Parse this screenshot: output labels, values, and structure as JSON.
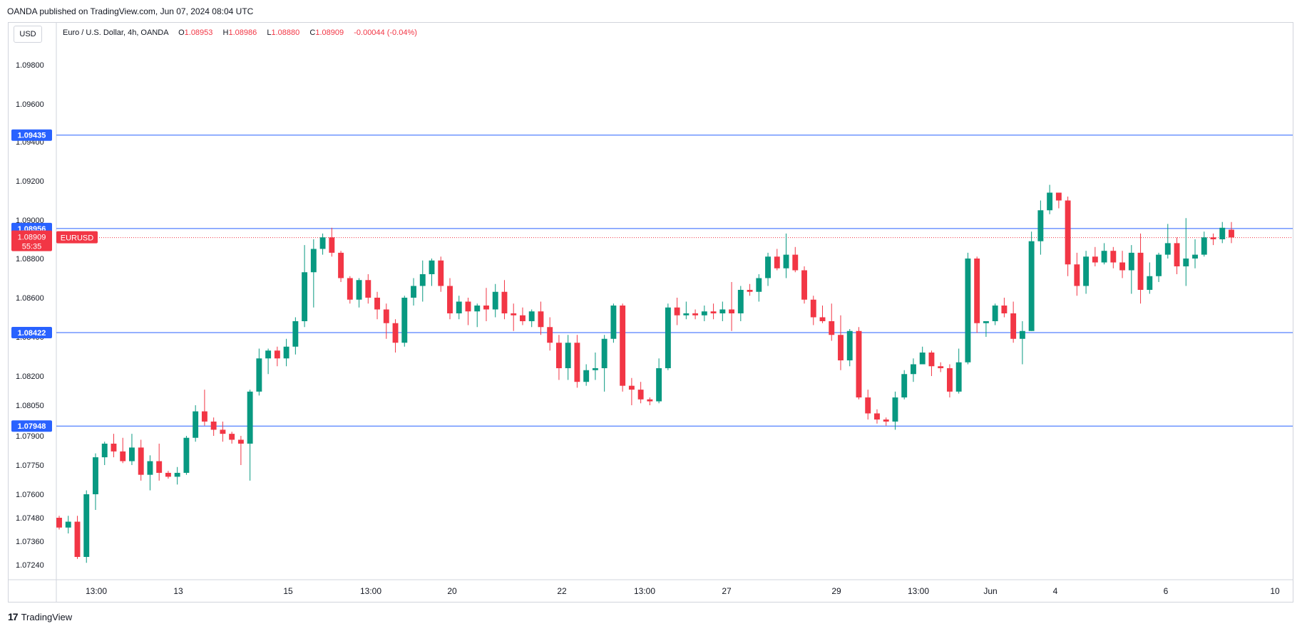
{
  "header": {
    "attribution": "OANDA published on TradingView.com, Jun 07, 2024 08:04 UTC"
  },
  "toolbar": {
    "currency_button": "USD"
  },
  "legend": {
    "symbol_desc": "Euro / U.S. Dollar, 4h, OANDA",
    "o_label": "O",
    "o_value": "1.08953",
    "h_label": "H",
    "h_value": "1.08986",
    "l_label": "L",
    "l_value": "1.08880",
    "c_label": "C",
    "c_value": "1.08909",
    "change": "-0.00044 (-0.04%)"
  },
  "footer": {
    "brand": "TradingView",
    "mark": "17"
  },
  "colors": {
    "up": "#089981",
    "down": "#f23645",
    "hline": "#2962ff",
    "grid": "#d1d4dc"
  },
  "chart_data": {
    "type": "candlestick",
    "symbol": "EURUSD",
    "timeframe": "4h",
    "y_ticks": [
      "1.07240",
      "1.07360",
      "1.07480",
      "1.07600",
      "1.07750",
      "1.07900",
      "1.08050",
      "1.08200",
      "1.08400",
      "1.08600",
      "1.08800",
      "1.09000",
      "1.09200",
      "1.09400",
      "1.09600",
      "1.09800"
    ],
    "x_ticks": [
      "13:00",
      "13",
      "15",
      "13:00",
      "20",
      "22",
      "13:00",
      "27",
      "29",
      "13:00",
      "Jun",
      "4",
      "6",
      "10"
    ],
    "horizontal_lines": [
      {
        "label": "1.09435",
        "value": 1.09435
      },
      {
        "label": "1.08956",
        "value": 1.08956
      },
      {
        "label": "1.08422",
        "value": 1.08422
      },
      {
        "label": "1.07948",
        "value": 1.07948
      }
    ],
    "current_price": {
      "label": "1.08909",
      "value": 1.08909,
      "countdown": "55:35",
      "symbol_tag": "EURUSD"
    },
    "candles": [
      [
        1.0748,
        1.0749,
        1.0742,
        1.0743
      ],
      [
        1.0743,
        1.0749,
        1.074,
        1.0746
      ],
      [
        1.0746,
        1.0749,
        1.0727,
        1.0728
      ],
      [
        1.0728,
        1.0762,
        1.0725,
        1.076
      ],
      [
        1.076,
        1.0781,
        1.0752,
        1.0779
      ],
      [
        1.0779,
        1.0787,
        1.0775,
        1.0786
      ],
      [
        1.0786,
        1.0791,
        1.0779,
        1.0782
      ],
      [
        1.0782,
        1.0789,
        1.0776,
        1.0777
      ],
      [
        1.0777,
        1.0791,
        1.0775,
        1.0784
      ],
      [
        1.0784,
        1.0788,
        1.0767,
        1.077
      ],
      [
        1.077,
        1.078,
        1.0762,
        1.0777
      ],
      [
        1.0777,
        1.0786,
        1.0767,
        1.0771
      ],
      [
        1.0771,
        1.0772,
        1.0768,
        1.0769
      ],
      [
        1.0769,
        1.0774,
        1.0765,
        1.0771
      ],
      [
        1.0771,
        1.079,
        1.077,
        1.0789
      ],
      [
        1.0789,
        1.0805,
        1.0787,
        1.0802
      ],
      [
        1.0802,
        1.0813,
        1.0795,
        1.0797
      ],
      [
        1.0797,
        1.0799,
        1.079,
        1.0793
      ],
      [
        1.0793,
        1.0797,
        1.0787,
        1.0791
      ],
      [
        1.0791,
        1.0792,
        1.0786,
        1.0788
      ],
      [
        1.0788,
        1.079,
        1.0775,
        1.0786
      ],
      [
        1.0786,
        1.0813,
        1.0767,
        1.0812
      ],
      [
        1.0812,
        1.0834,
        1.081,
        1.0829
      ],
      [
        1.0829,
        1.0834,
        1.0821,
        1.0833
      ],
      [
        1.0833,
        1.0835,
        1.0825,
        1.0829
      ],
      [
        1.0829,
        1.0839,
        1.0825,
        1.0835
      ],
      [
        1.0835,
        1.085,
        1.0831,
        1.0848
      ],
      [
        1.0848,
        1.0887,
        1.0845,
        1.0873
      ],
      [
        1.0873,
        1.089,
        1.0855,
        1.0885
      ],
      [
        1.0885,
        1.0893,
        1.0882,
        1.0891
      ],
      [
        1.0891,
        1.0896,
        1.0881,
        1.0883
      ],
      [
        1.0883,
        1.0884,
        1.0868,
        1.087
      ],
      [
        1.087,
        1.0871,
        1.0857,
        1.0859
      ],
      [
        1.0859,
        1.087,
        1.0855,
        1.0869
      ],
      [
        1.0869,
        1.0872,
        1.0857,
        1.086
      ],
      [
        1.086,
        1.0863,
        1.0849,
        1.0854
      ],
      [
        1.0854,
        1.0857,
        1.0839,
        1.0847
      ],
      [
        1.0847,
        1.0849,
        1.0832,
        1.0837
      ],
      [
        1.0837,
        1.0861,
        1.0835,
        1.086
      ],
      [
        1.086,
        1.087,
        1.0856,
        1.0866
      ],
      [
        1.0866,
        1.0879,
        1.0858,
        1.0872
      ],
      [
        1.0872,
        1.088,
        1.0866,
        1.0879
      ],
      [
        1.0879,
        1.0881,
        1.0863,
        1.0866
      ],
      [
        1.0866,
        1.087,
        1.0849,
        1.0852
      ],
      [
        1.0852,
        1.0861,
        1.0849,
        1.0858
      ],
      [
        1.0858,
        1.086,
        1.0846,
        1.0853
      ],
      [
        1.0853,
        1.0857,
        1.0845,
        1.0856
      ],
      [
        1.0856,
        1.0865,
        1.0848,
        1.0854
      ],
      [
        1.0854,
        1.0867,
        1.085,
        1.0863
      ],
      [
        1.0863,
        1.0869,
        1.0849,
        1.0852
      ],
      [
        1.0852,
        1.0857,
        1.0843,
        1.0851
      ],
      [
        1.0851,
        1.0855,
        1.0846,
        1.0848
      ],
      [
        1.0848,
        1.0854,
        1.0845,
        1.0853
      ],
      [
        1.0853,
        1.0858,
        1.0841,
        1.0845
      ],
      [
        1.0845,
        1.085,
        1.0833,
        1.0837
      ],
      [
        1.0837,
        1.0841,
        1.0818,
        1.0824
      ],
      [
        1.0824,
        1.0841,
        1.0818,
        1.0837
      ],
      [
        1.0837,
        1.0841,
        1.0814,
        1.0817
      ],
      [
        1.0817,
        1.0826,
        1.0815,
        1.0823
      ],
      [
        1.0823,
        1.0832,
        1.0818,
        1.0824
      ],
      [
        1.0824,
        1.0841,
        1.0812,
        1.0839
      ],
      [
        1.0839,
        1.0857,
        1.0837,
        1.0856
      ],
      [
        1.0856,
        1.0857,
        1.0812,
        1.0815
      ],
      [
        1.0815,
        1.0819,
        1.0805,
        1.0813
      ],
      [
        1.0813,
        1.0817,
        1.0806,
        1.0808
      ],
      [
        1.0808,
        1.0809,
        1.0805,
        1.0807
      ],
      [
        1.0807,
        1.0829,
        1.0806,
        1.0824
      ],
      [
        1.0824,
        1.0857,
        1.0823,
        1.0855
      ],
      [
        1.0855,
        1.086,
        1.0846,
        1.0851
      ],
      [
        1.0851,
        1.0858,
        1.0849,
        1.0852
      ],
      [
        1.0852,
        1.0854,
        1.0849,
        1.0851
      ],
      [
        1.0851,
        1.0856,
        1.0848,
        1.0853
      ],
      [
        1.0853,
        1.0857,
        1.0849,
        1.0852
      ],
      [
        1.0852,
        1.0858,
        1.0848,
        1.0854
      ],
      [
        1.0854,
        1.0868,
        1.0843,
        1.0852
      ],
      [
        1.0852,
        1.0866,
        1.0848,
        1.0864
      ],
      [
        1.0864,
        1.0867,
        1.0861,
        1.0863
      ],
      [
        1.0863,
        1.0872,
        1.0858,
        1.087
      ],
      [
        1.087,
        1.0883,
        1.0866,
        1.0881
      ],
      [
        1.0881,
        1.0885,
        1.0874,
        1.0875
      ],
      [
        1.0875,
        1.0893,
        1.087,
        1.0882
      ],
      [
        1.0882,
        1.0886,
        1.0873,
        1.0874
      ],
      [
        1.0874,
        1.0876,
        1.0857,
        1.0859
      ],
      [
        1.0859,
        1.0861,
        1.0846,
        1.085
      ],
      [
        1.085,
        1.0856,
        1.0847,
        1.0848
      ],
      [
        1.0848,
        1.0857,
        1.0838,
        1.0841
      ],
      [
        1.0841,
        1.0851,
        1.0823,
        1.0828
      ],
      [
        1.0828,
        1.0844,
        1.0825,
        1.0843
      ],
      [
        1.0843,
        1.0845,
        1.0808,
        1.0809
      ],
      [
        1.0809,
        1.0813,
        1.0798,
        1.0801
      ],
      [
        1.0801,
        1.0803,
        1.0796,
        1.0798
      ],
      [
        1.0798,
        1.0799,
        1.0795,
        1.0797
      ],
      [
        1.0797,
        1.0812,
        1.0793,
        1.0809
      ],
      [
        1.0809,
        1.0823,
        1.0808,
        1.0821
      ],
      [
        1.0821,
        1.0829,
        1.0817,
        1.0826
      ],
      [
        1.0826,
        1.0835,
        1.0826,
        1.0832
      ],
      [
        1.0832,
        1.0833,
        1.082,
        1.0825
      ],
      [
        1.0825,
        1.0827,
        1.0822,
        1.0824
      ],
      [
        1.0824,
        1.0826,
        1.0809,
        1.0812
      ],
      [
        1.0812,
        1.0834,
        1.0811,
        1.0827
      ],
      [
        1.0827,
        1.0883,
        1.0826,
        1.088
      ],
      [
        1.088,
        1.0881,
        1.0842,
        1.0847
      ],
      [
        1.0847,
        1.0848,
        1.084,
        1.0848
      ],
      [
        1.0848,
        1.0857,
        1.0846,
        1.0856
      ],
      [
        1.0856,
        1.086,
        1.085,
        1.0852
      ],
      [
        1.0852,
        1.0858,
        1.0837,
        1.0839
      ],
      [
        1.0839,
        1.0848,
        1.0826,
        1.0843
      ],
      [
        1.0843,
        1.0894,
        1.0843,
        1.0889
      ],
      [
        1.0889,
        1.091,
        1.0882,
        1.0905
      ],
      [
        1.0905,
        1.0918,
        1.0903,
        1.0914
      ],
      [
        1.0914,
        1.0914,
        1.0906,
        1.091
      ],
      [
        1.091,
        1.0912,
        1.0871,
        1.0877
      ],
      [
        1.0877,
        1.0883,
        1.0861,
        1.0866
      ],
      [
        1.0866,
        1.0884,
        1.0862,
        1.0881
      ],
      [
        1.0881,
        1.0886,
        1.0876,
        1.0878
      ],
      [
        1.0878,
        1.0888,
        1.0877,
        1.0884
      ],
      [
        1.0884,
        1.0886,
        1.0875,
        1.0878
      ],
      [
        1.0878,
        1.0884,
        1.087,
        1.0874
      ],
      [
        1.0874,
        1.0887,
        1.0862,
        1.0883
      ],
      [
        1.0883,
        1.0893,
        1.0857,
        1.0864
      ],
      [
        1.0864,
        1.0878,
        1.0862,
        1.0871
      ],
      [
        1.0871,
        1.0883,
        1.0868,
        1.0882
      ],
      [
        1.0882,
        1.0898,
        1.088,
        1.0888
      ],
      [
        1.0888,
        1.0891,
        1.0872,
        1.0876
      ],
      [
        1.0876,
        1.0901,
        1.0866,
        1.088
      ],
      [
        1.088,
        1.089,
        1.0875,
        1.0882
      ],
      [
        1.0882,
        1.0894,
        1.0881,
        1.0891
      ],
      [
        1.0891,
        1.0893,
        1.0887,
        1.089
      ],
      [
        1.089,
        1.0899,
        1.0888,
        1.0896
      ],
      [
        1.0895,
        1.0899,
        1.0888,
        1.0891
      ]
    ]
  }
}
